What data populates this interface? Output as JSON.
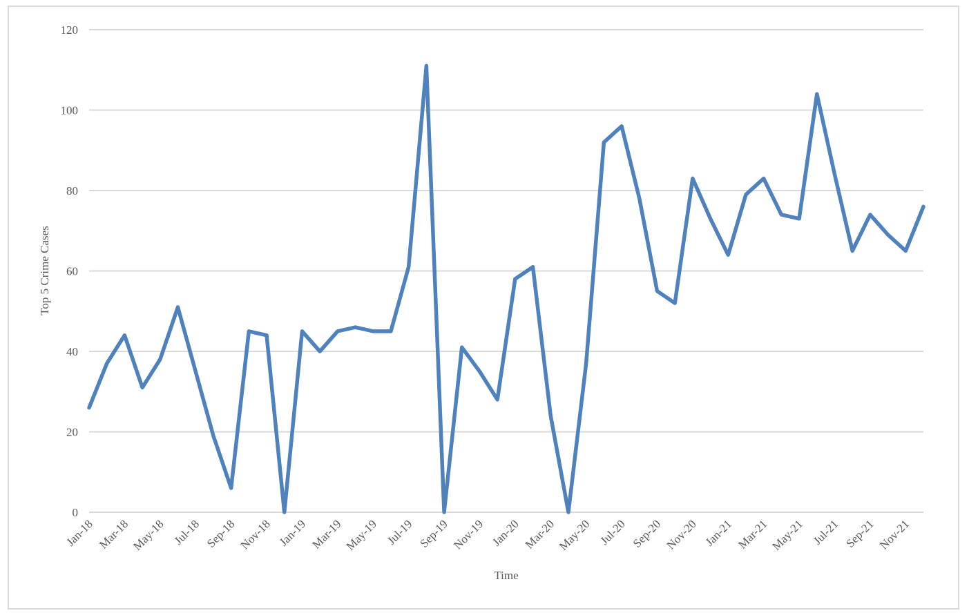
{
  "chart_data": {
    "type": "line",
    "x_label": "Time",
    "y_label": "Top 5 Crime Cases",
    "categories": [
      "Jan-18",
      null,
      "Mar-18",
      null,
      "May-18",
      null,
      "Jul-18",
      null,
      "Sep-18",
      null,
      "Nov-18",
      null,
      "Jan-19",
      null,
      "Mar-19",
      null,
      "May-19",
      null,
      "Jul-19",
      null,
      "Sep-19",
      null,
      "Nov-19",
      null,
      "Jan-20",
      null,
      "Mar-20",
      null,
      "May-20",
      null,
      "Jul-20",
      null,
      "Sep-20",
      null,
      "Nov-20",
      null,
      "Jan-21",
      null,
      "Mar-21",
      null,
      "May-21",
      null,
      "Jul-21",
      null,
      "Sep-21",
      null,
      "Nov-21",
      null
    ],
    "values": [
      26,
      37,
      44,
      31,
      38,
      51,
      35,
      19,
      6,
      45,
      44,
      0,
      45,
      40,
      45,
      46,
      45,
      45,
      61,
      111,
      0,
      41,
      35,
      28,
      58,
      61,
      24,
      0,
      37,
      92,
      96,
      78,
      55,
      52,
      83,
      73,
      64,
      79,
      83,
      74,
      73,
      104,
      84,
      65,
      74,
      69,
      65,
      76
    ],
    "color": "#4f81bd",
    "ylim": [
      0,
      120
    ],
    "yticks": [
      0,
      20,
      40,
      60,
      80,
      100,
      120
    ],
    "grid": true
  }
}
